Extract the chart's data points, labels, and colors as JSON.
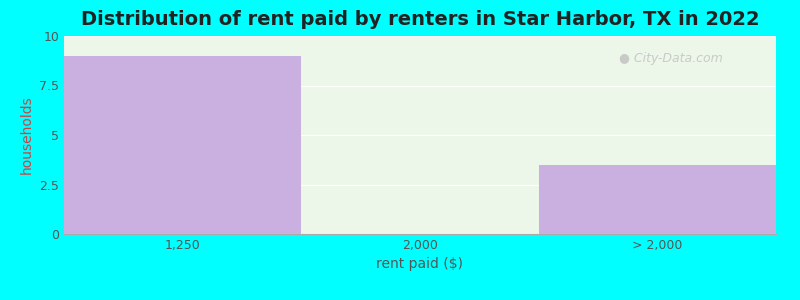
{
  "title": "Distribution of rent paid by renters in Star Harbor, TX in 2022",
  "categories": [
    "1,250",
    "2,000",
    "> 2,000"
  ],
  "values": [
    9.0,
    0.0,
    3.5
  ],
  "bar_color": "#C9B0E0",
  "bar_edgecolor": "#C9B0E0",
  "xlabel": "rent paid ($)",
  "ylabel": "households",
  "ylim": [
    0,
    10
  ],
  "yticks": [
    0,
    2.5,
    5.0,
    7.5,
    10
  ],
  "ytick_labels": [
    "0",
    "2.5",
    "5",
    "7.5",
    "10"
  ],
  "background_color": "#00FFFF",
  "plot_bg_color": "#f0f8f0",
  "title_fontsize": 14,
  "label_fontsize": 10,
  "tick_fontsize": 9,
  "watermark": "City-Data.com",
  "ylabel_color": "#cc4444",
  "axis_color": "#555555"
}
